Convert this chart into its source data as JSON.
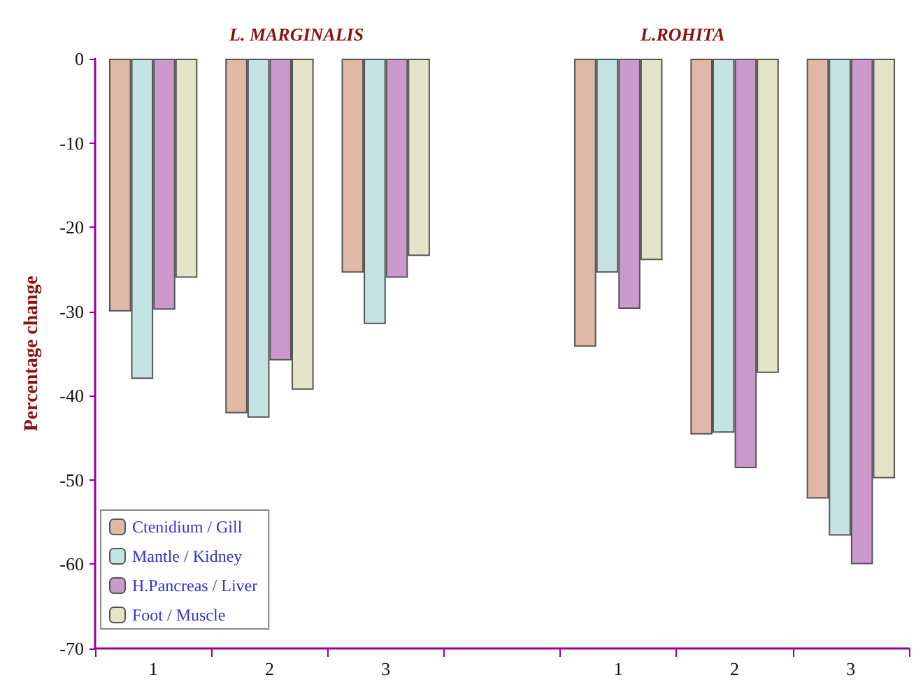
{
  "chart_data": {
    "type": "bar",
    "ylabel": "Percentage change",
    "annotations": [
      "L. MARGINALIS",
      "L.ROHITA"
    ],
    "categories": [
      "1",
      "2",
      "3",
      null,
      "1",
      "2",
      "3"
    ],
    "series": [
      {
        "name": "Ctenidium / Gill",
        "color": "#e0b8a6",
        "values": [
          -30,
          -42.1,
          -25.4,
          null,
          -34.2,
          -44.6,
          -52.2
        ]
      },
      {
        "name": "Mantle / Kidney",
        "color": "#c4e4e4",
        "values": [
          -38,
          -42.6,
          -31.5,
          null,
          -25.4,
          -44.4,
          -56.6
        ]
      },
      {
        "name": "H.Pancreas / Liver",
        "color": "#cc99cc",
        "values": [
          -29.8,
          -35.8,
          -26,
          null,
          -29.7,
          -48.6,
          -60
        ]
      },
      {
        "name": "Foot / Muscle",
        "color": "#e4e4c8",
        "values": [
          -26,
          -39.3,
          -23.4,
          null,
          -23.9,
          -37.3,
          -49.8
        ]
      }
    ],
    "ylim": [
      -70,
      0
    ],
    "yticks": [
      -70,
      -60,
      -50,
      -40,
      -30,
      -20,
      -10,
      0
    ],
    "grid": false,
    "legend": "bottom left"
  }
}
